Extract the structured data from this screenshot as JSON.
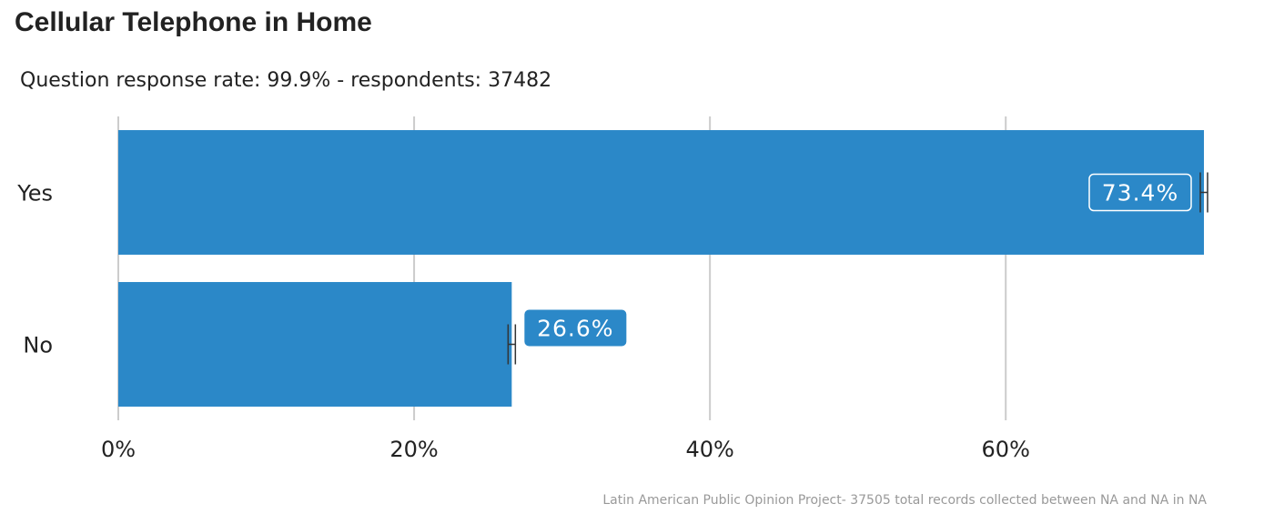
{
  "chart_data": {
    "type": "bar",
    "orientation": "horizontal",
    "title": "Cellular Telephone in Home",
    "subtitle": "Question response rate: 99.9%  - respondents: 37482",
    "caption": "Latin American Public Opinion Project- 37505 total records collected between NA and NA in  NA",
    "categories": [
      "Yes",
      "No"
    ],
    "values": [
      73.4,
      26.6
    ],
    "data_labels": [
      "73.4%",
      "26.6%"
    ],
    "xlim": [
      0,
      73.4
    ],
    "x_ticks": [
      0,
      20,
      40,
      60
    ],
    "x_tick_labels": [
      "0%",
      "20%",
      "40%",
      "60%"
    ],
    "grid": "vertical major",
    "bar_color": "#2b88c8",
    "error_bar_color": "#333333"
  }
}
